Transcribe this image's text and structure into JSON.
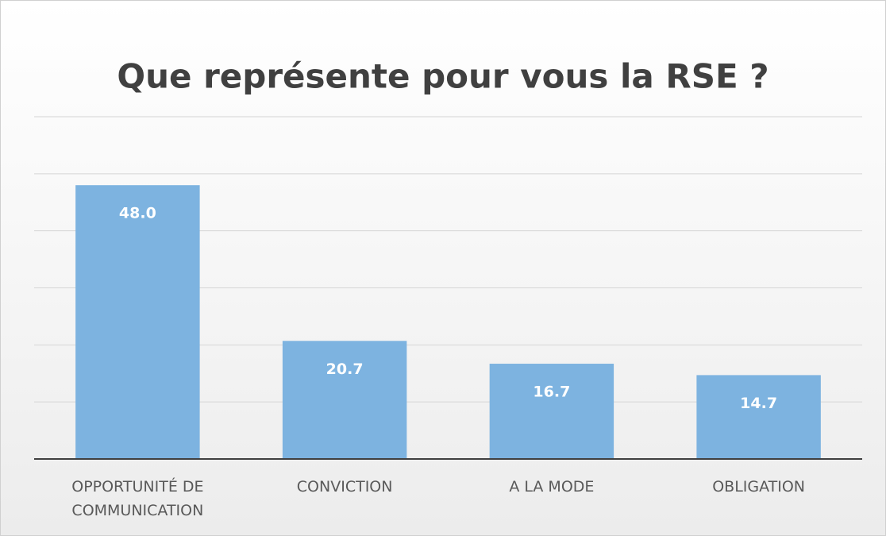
{
  "chart_data": {
    "type": "bar",
    "title": "Que représente pour vous la RSE ?",
    "categories": [
      "OPPORTUNITÉ DE COMMUNICATION",
      "CONVICTION",
      "A LA MODE",
      "OBLIGATION"
    ],
    "values": [
      48.0,
      20.7,
      16.7,
      14.7
    ],
    "value_labels": [
      "48.0",
      "20.7",
      "16.7",
      "14.7"
    ],
    "color": "#7db3e0",
    "ylim": [
      0,
      60
    ],
    "yticks": [
      0,
      10,
      20,
      30,
      40,
      50,
      60
    ],
    "grid": true
  }
}
